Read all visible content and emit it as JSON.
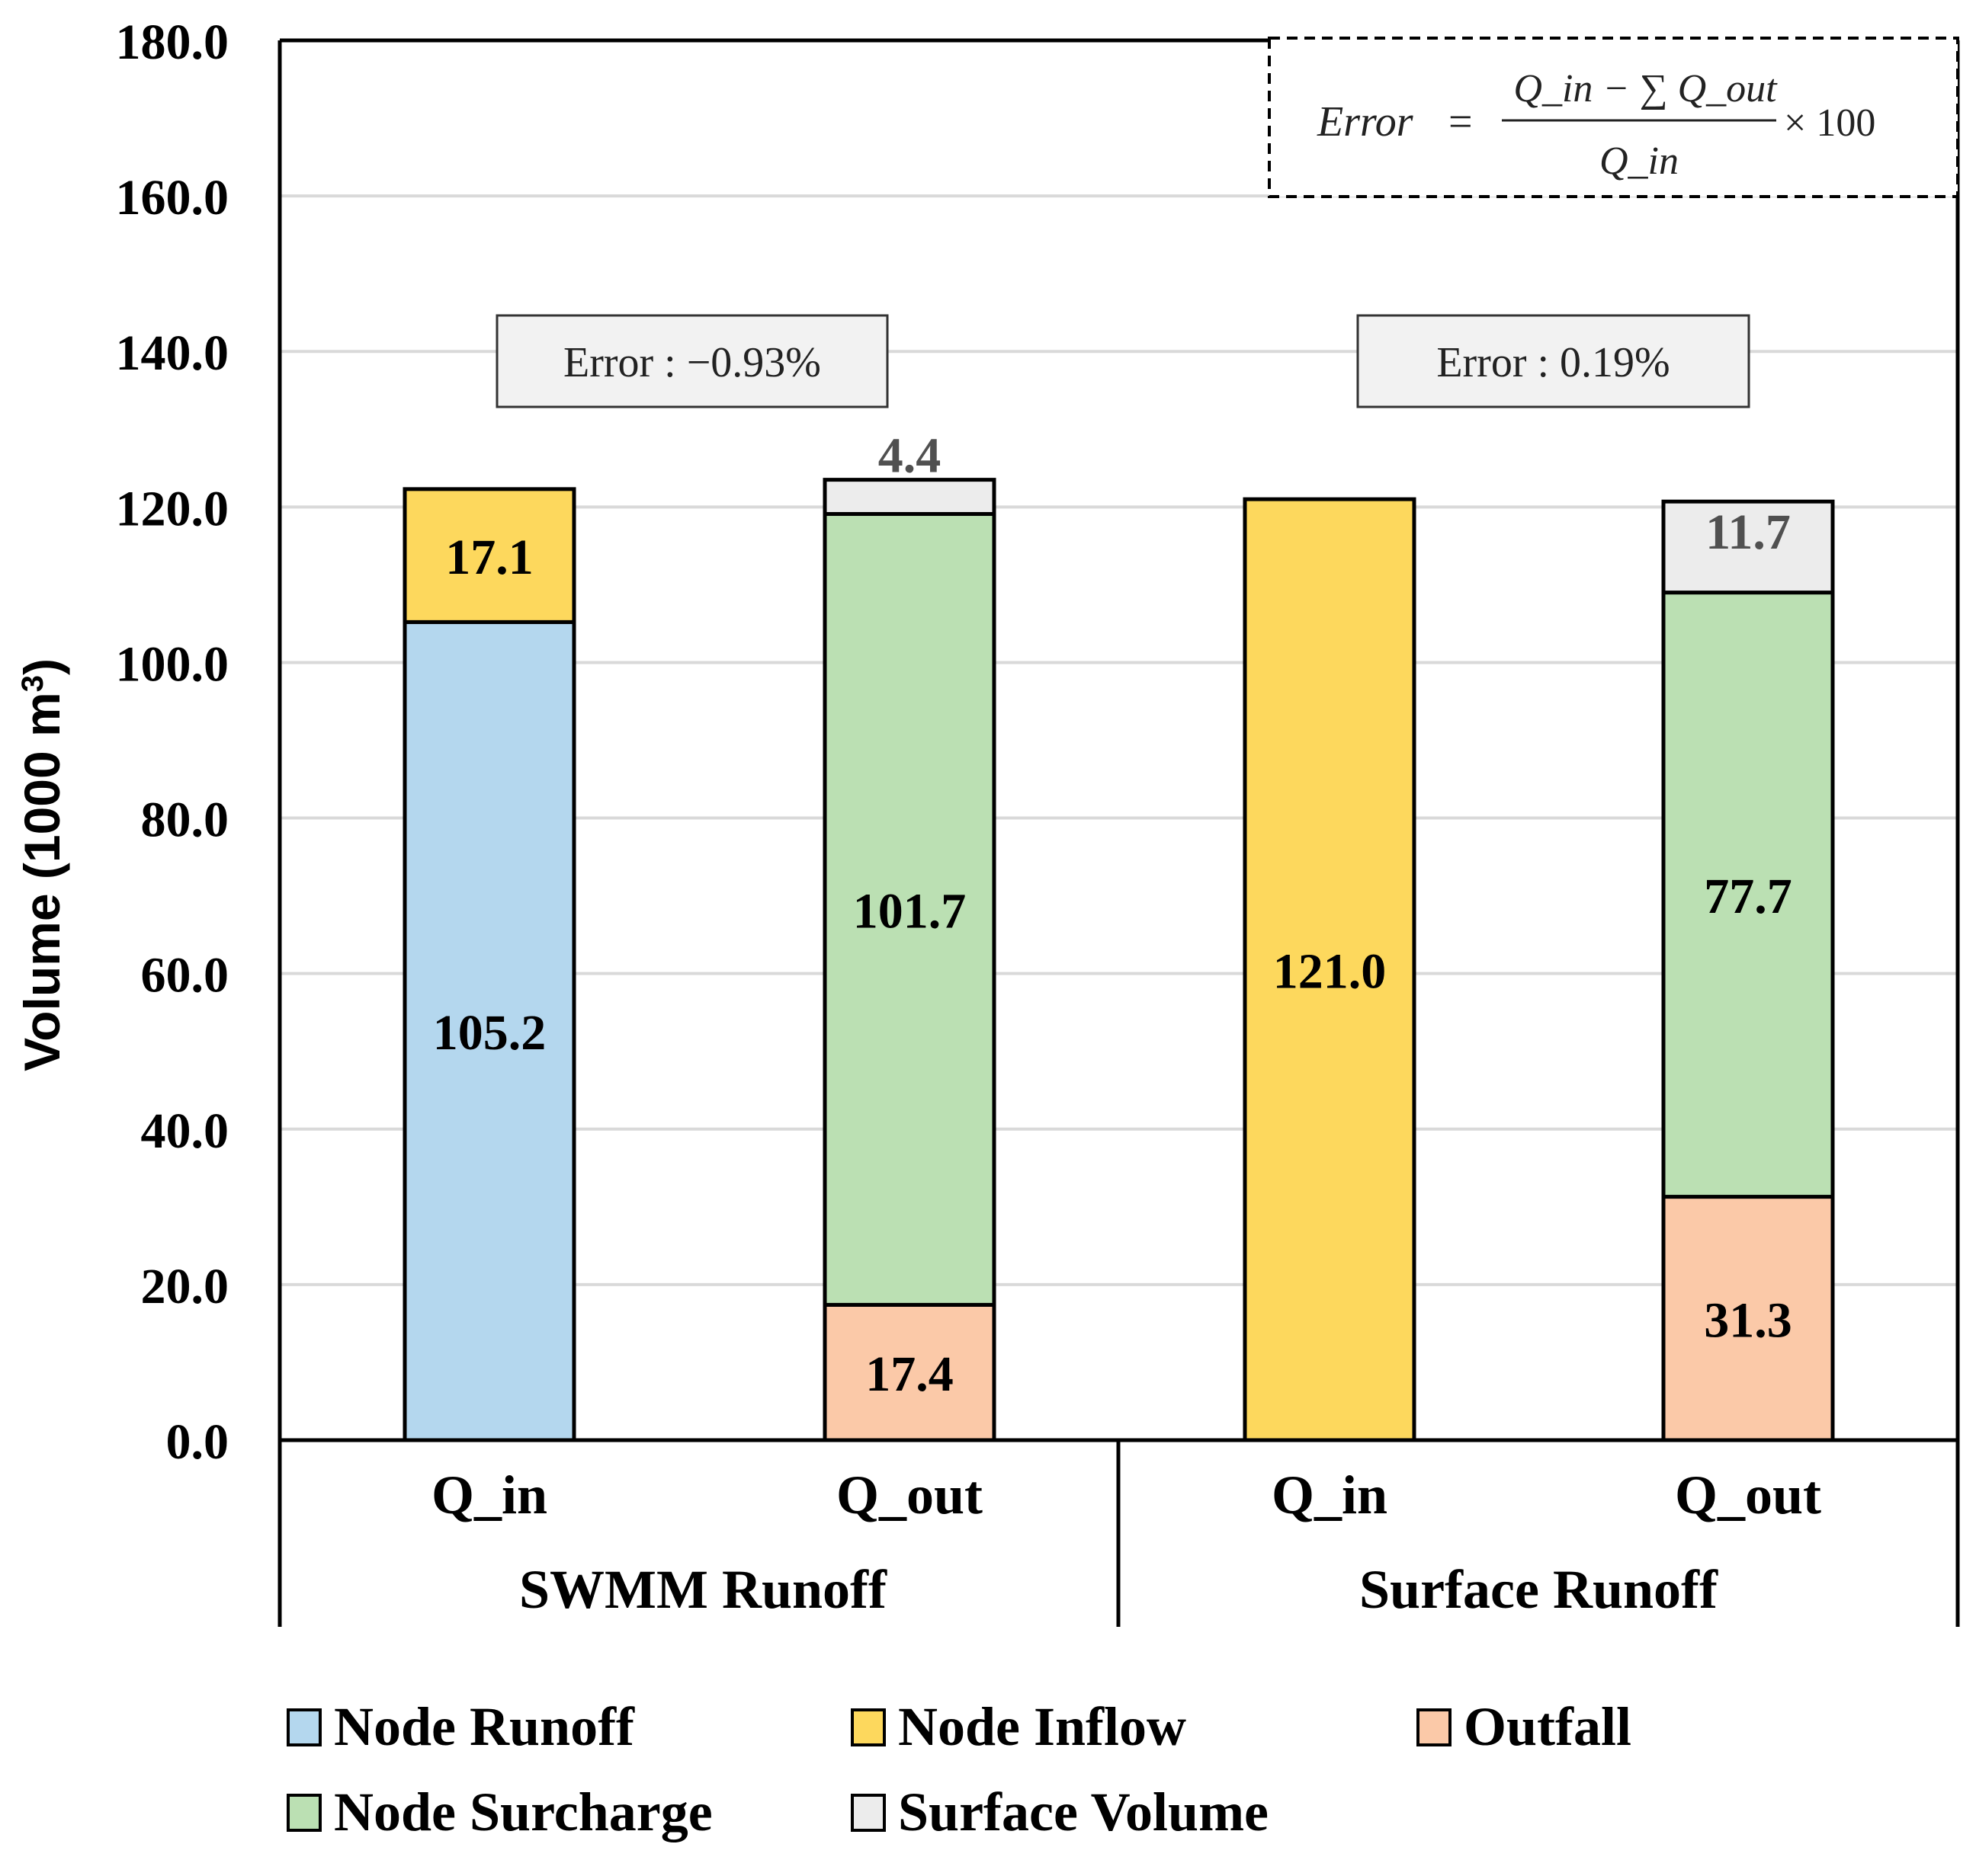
{
  "chart_data": {
    "type": "bar",
    "stacked": true,
    "ylabel": "Volume (1000 m",
    "ylabel_sup": "3",
    "ylabel_close": ")",
    "ylim": [
      0,
      180
    ],
    "yticks": [
      "0.0",
      "20.0",
      "40.0",
      "60.0",
      "80.0",
      "100.0",
      "120.0",
      "140.0",
      "160.0",
      "180.0"
    ],
    "grid": true,
    "groups": [
      {
        "name": "SWMM Runoff",
        "error_label": "Error : −0.93%",
        "bars": [
          {
            "label": "Q_in",
            "segments": [
              {
                "series": "Node Runoff",
                "value": 105.2,
                "label": "105.2"
              },
              {
                "series": "Node Inflow",
                "value": 17.1,
                "label": "17.1"
              }
            ]
          },
          {
            "label": "Q_out",
            "segments": [
              {
                "series": "Outfall",
                "value": 17.4,
                "label": "17.4"
              },
              {
                "series": "Node Surcharge",
                "value": 101.7,
                "label": "101.7"
              },
              {
                "series": "Surface Volume",
                "value": 4.4,
                "label": "4.4"
              }
            ]
          }
        ]
      },
      {
        "name": "Surface Runoff",
        "error_label": "Error : 0.19%",
        "bars": [
          {
            "label": "Q_in",
            "segments": [
              {
                "series": "Node Inflow",
                "value": 121.0,
                "label": "121.0"
              }
            ]
          },
          {
            "label": "Q_out",
            "segments": [
              {
                "series": "Outfall",
                "value": 31.3,
                "label": "31.3"
              },
              {
                "series": "Node Surcharge",
                "value": 77.7,
                "label": "77.7"
              },
              {
                "series": "Surface Volume",
                "value": 11.7,
                "label": "11.7"
              }
            ]
          }
        ]
      }
    ],
    "series": [
      {
        "name": "Node Runoff",
        "color": "#b4d7ee"
      },
      {
        "name": "Node Inflow",
        "color": "#fdd85d"
      },
      {
        "name": "Outfall",
        "color": "#fbc9a8"
      },
      {
        "name": "Node Surcharge",
        "color": "#bbe0b3"
      },
      {
        "name": "Surface Volume",
        "color": "#ececec"
      }
    ],
    "legend_position": "bottom",
    "formula": {
      "lhs": "Error",
      "equals": "=",
      "numerator": "Q_in − ∑ Q_out",
      "denominator": "Q_in",
      "times": "× 100"
    }
  }
}
